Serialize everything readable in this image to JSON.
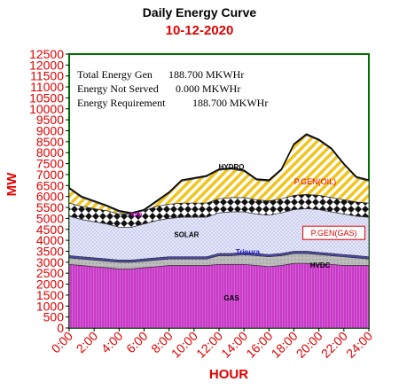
{
  "chart_data": {
    "type": "area",
    "title": "Daily Energy Curve",
    "subtitle": "10-12-2020",
    "xlabel": "HOUR",
    "ylabel": "MW",
    "xlim": [
      0,
      24
    ],
    "ylim": [
      0,
      12500
    ],
    "x_ticks": [
      "0:00",
      "2:00",
      "4:00",
      "6:00",
      "8:00",
      "10:00",
      "12:00",
      "14:00",
      "16:00",
      "18:00",
      "20:00",
      "22:00",
      "24:00"
    ],
    "y_ticks": [
      "0",
      "500",
      "1000",
      "1500",
      "2000",
      "2500",
      "3000",
      "3500",
      "4000",
      "4500",
      "5000",
      "5500",
      "6000",
      "6500",
      "7000",
      "7500",
      "8000",
      "8500",
      "9000",
      "9500",
      "10000",
      "10500",
      "11000",
      "11500",
      "12000",
      "12500"
    ],
    "x": [
      0,
      1,
      2,
      3,
      4,
      5,
      6,
      7,
      8,
      9,
      10,
      11,
      12,
      13,
      14,
      15,
      16,
      17,
      18,
      19,
      20,
      21,
      22,
      23,
      24
    ],
    "series": [
      {
        "name": "GAS",
        "color": "#cc33cc",
        "values": [
          2900,
          2850,
          2800,
          2750,
          2700,
          2700,
          2750,
          2800,
          2850,
          2850,
          2850,
          2850,
          2900,
          2900,
          2900,
          2850,
          2800,
          2850,
          2950,
          2950,
          2900,
          2900,
          2850,
          2850,
          2850
        ]
      },
      {
        "name": "HVDC",
        "color": "#b0b0b0",
        "values": [
          300,
          300,
          300,
          300,
          300,
          300,
          300,
          300,
          300,
          300,
          300,
          300,
          400,
          400,
          450,
          450,
          450,
          450,
          450,
          450,
          450,
          400,
          400,
          350,
          300
        ]
      },
      {
        "name": "Tripura",
        "color": "#3333aa",
        "values": [
          100,
          100,
          100,
          100,
          100,
          100,
          100,
          100,
          100,
          100,
          100,
          100,
          100,
          100,
          100,
          100,
          100,
          100,
          100,
          100,
          100,
          100,
          100,
          100,
          100
        ]
      },
      {
        "name": "SOLAR",
        "color": "#dde0f6",
        "values": [
          1800,
          1700,
          1650,
          1600,
          1500,
          1500,
          1600,
          1700,
          1750,
          1800,
          1800,
          1800,
          1850,
          1900,
          1850,
          1800,
          1800,
          1850,
          1900,
          1950,
          1950,
          1900,
          1850,
          1800,
          1800
        ]
      },
      {
        "name": "P.GEN(GAS)",
        "color": "#222222",
        "values": [
          600,
          600,
          600,
          600,
          600,
          600,
          600,
          650,
          650,
          650,
          650,
          650,
          650,
          650,
          650,
          650,
          650,
          650,
          650,
          650,
          650,
          650,
          650,
          650,
          650
        ]
      },
      {
        "name": "P.GEN(OIL)",
        "color": "#f0c020",
        "values": [
          650,
          400,
          300,
          200,
          100,
          0,
          0,
          200,
          500,
          1000,
          1100,
          1200,
          1300,
          1300,
          1200,
          900,
          900,
          1300,
          2300,
          2700,
          2500,
          2200,
          1600,
          1100,
          1000
        ]
      },
      {
        "name": "HYDRO",
        "color": "#7a7a7a",
        "values": [
          50,
          50,
          50,
          50,
          50,
          50,
          50,
          50,
          50,
          50,
          50,
          50,
          50,
          50,
          50,
          50,
          50,
          50,
          50,
          50,
          50,
          50,
          50,
          50,
          50
        ]
      }
    ],
    "series_labels": {
      "GAS": "GAS",
      "HVDC": "HVDC",
      "Tripura": "Tripura",
      "SOLAR": "SOLAR",
      "P.GEN(GAS)": "P.GEN(GAS)",
      "P.GEN(OIL)": "P.GEN(OIL)",
      "HYDRO": "HYDRO",
      "IMP": "Imp"
    },
    "annotations": [
      {
        "label": "Total Energy Gen",
        "value": "188.700 MKWHr"
      },
      {
        "label": "Energy Not Served",
        "value": "0.000 MKWHr"
      },
      {
        "label": "Energy Requirement",
        "value": "188.700 MKWHr"
      }
    ],
    "grid": false,
    "plot_background": "#ffffff",
    "plot_border_color": "#007000",
    "axis_text_color": "#e00000"
  }
}
